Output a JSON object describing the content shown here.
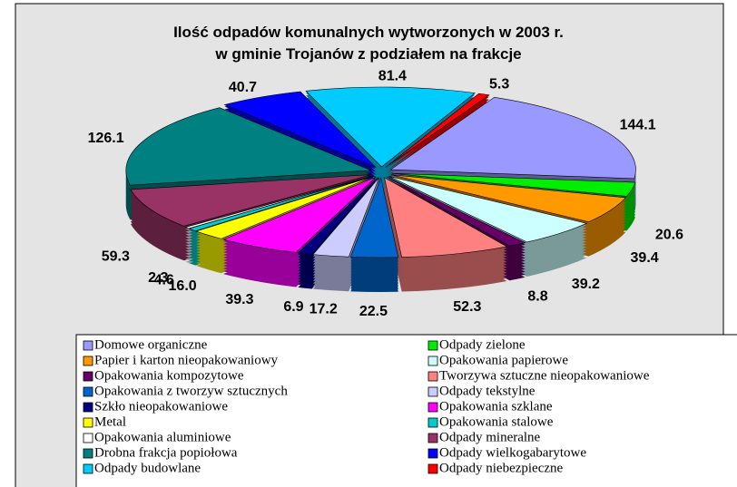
{
  "chart_data": {
    "type": "pie",
    "title": "Ilość odpadów komunalnych wytworzonych w 2003 r.\nw gminie Trojanów z podziałem na frakcje",
    "categories": [
      "Domowe organiczne",
      "Odpady zielone",
      "Papier i karton nieopakowaniowy",
      "Opakowania papierowe",
      "Opakowania kompozytowe",
      "Tworzywa sztuczne nieopakowaniowe",
      "Opakowania z tworzyw sztucznych",
      "Odpady tekstylne",
      "Szkło nieopakowaniowe",
      "Opakowania szklane",
      "Metal",
      "Opakowania stalowe",
      "Opakowania aluminiowe",
      "Odpady mineralne",
      "Drobna frakcja popiołowa",
      "Odpady wielkogabarytowe",
      "Odpady budowlane",
      "Odpady niebezpieczne"
    ],
    "values": [
      144.1,
      20.6,
      39.4,
      39.2,
      8.8,
      52.3,
      22.5,
      17.2,
      6.9,
      39.3,
      16.0,
      4.6,
      2.3,
      59.3,
      126.1,
      40.7,
      81.4,
      5.3
    ],
    "value_labels": [
      "144.1",
      "20.6",
      "39.4",
      "39.2",
      "8.8",
      "52.3",
      "22.5",
      "17.2",
      "6.9",
      "39.3",
      "16.0",
      "4.6",
      "2.3",
      "59.3",
      "126.1",
      "40.7",
      "81.4",
      "5.3"
    ],
    "colors": [
      "#9999ff",
      "#00ee00",
      "#ff9900",
      "#ccffff",
      "#660066",
      "#ff8080",
      "#0066cc",
      "#ccccff",
      "#000080",
      "#ff00ff",
      "#ffff00",
      "#00cccc",
      "#ffffff",
      "#993366",
      "#008080",
      "#0000ff",
      "#00ccff",
      "#ff0000"
    ]
  }
}
